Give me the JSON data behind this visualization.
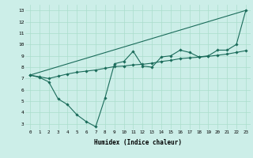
{
  "xlabel": "Humidex (Indice chaleur)",
  "bg_color": "#cceee8",
  "line_color": "#1a6b5a",
  "grid_color": "#aaddcc",
  "xlim": [
    -0.5,
    23.5
  ],
  "ylim": [
    2.5,
    13.5
  ],
  "xticks": [
    0,
    1,
    2,
    3,
    4,
    5,
    6,
    7,
    8,
    9,
    10,
    11,
    12,
    13,
    14,
    15,
    16,
    17,
    18,
    19,
    20,
    21,
    22,
    23
  ],
  "yticks": [
    3,
    4,
    5,
    6,
    7,
    8,
    9,
    10,
    11,
    12,
    13
  ],
  "series1_x": [
    0,
    1,
    2,
    3,
    4,
    5,
    6,
    7,
    8,
    9,
    10,
    11,
    12,
    13,
    14,
    15,
    16,
    17,
    18,
    19,
    20,
    21,
    22,
    23
  ],
  "series1_y": [
    7.3,
    7.1,
    6.7,
    5.2,
    4.7,
    3.8,
    3.2,
    2.75,
    5.3,
    8.3,
    8.5,
    9.4,
    8.1,
    8.0,
    8.9,
    9.0,
    9.5,
    9.3,
    8.9,
    9.0,
    9.5,
    9.5,
    10.0,
    13.0
  ],
  "series2_x": [
    0,
    1,
    2,
    3,
    4,
    5,
    6,
    7,
    8,
    9,
    10,
    11,
    12,
    13,
    14,
    15,
    16,
    17,
    18,
    19,
    20,
    21,
    22,
    23
  ],
  "series2_y": [
    7.3,
    7.15,
    7.0,
    7.2,
    7.4,
    7.55,
    7.65,
    7.75,
    7.9,
    8.05,
    8.1,
    8.2,
    8.25,
    8.35,
    8.5,
    8.6,
    8.75,
    8.82,
    8.88,
    8.95,
    9.05,
    9.15,
    9.3,
    9.45
  ],
  "series3_x": [
    0,
    23
  ],
  "series3_y": [
    7.3,
    13.0
  ]
}
